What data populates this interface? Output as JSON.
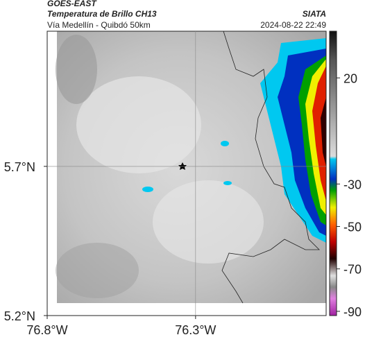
{
  "header": {
    "title": "GOES-EAST",
    "subtitle": "Temperatura de Brillo CH13",
    "location": "Vía Medellín - Quibdó 50km",
    "source": "SIATA",
    "datetime": "2024-08-22 22:49"
  },
  "map": {
    "xlim": [
      -76.8,
      -75.86
    ],
    "ylim": [
      5.2,
      6.153
    ],
    "xticks": [
      {
        "value": -76.8,
        "label": "76.8°W"
      },
      {
        "value": -76.3,
        "label": "76.3°W"
      }
    ],
    "yticks": [
      {
        "value": 5.7,
        "label": "5.7°N"
      },
      {
        "value": 5.2,
        "label": "5.2°N"
      }
    ],
    "grid": true
  },
  "colorbar": {
    "clim": [
      42,
      -92
    ],
    "ticks": [
      20,
      -30,
      -50,
      -70,
      -90
    ]
  }
}
